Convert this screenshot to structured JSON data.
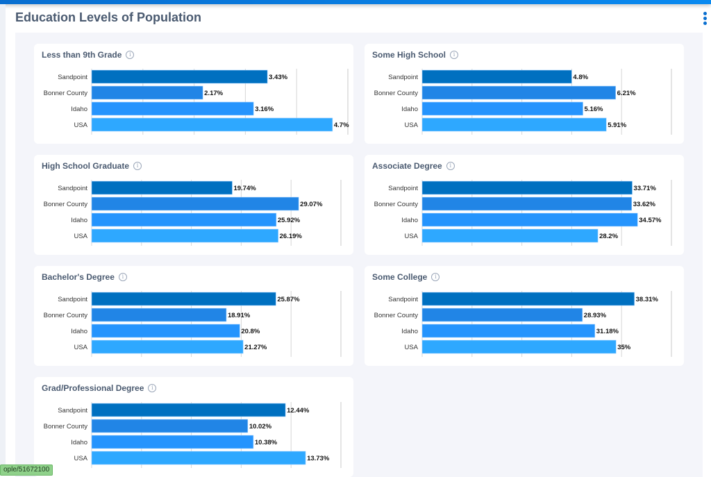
{
  "header": {
    "title": "Education Levels of Population",
    "menu_icon": "kebab-menu-icon"
  },
  "colors": {
    "Sandpoint": "#0070c0",
    "Bonner County": "#2185e6",
    "Idaho": "#2594fd",
    "USA": "#2ea8ff",
    "title": "#4a5a70",
    "accent": "#0a6fd0"
  },
  "status_tooltip": "ople/51672100",
  "chart_data": [
    {
      "type": "bar",
      "orientation": "horizontal",
      "title": "Less than 9th Grade",
      "categories": [
        "Sandpoint",
        "Bonner County",
        "Idaho",
        "USA"
      ],
      "values": [
        3.43,
        2.17,
        3.16,
        4.7
      ],
      "labels": [
        "3.43%",
        "2.17%",
        "3.16%",
        "4.7%"
      ],
      "xlim": [
        0,
        5
      ],
      "grid": true
    },
    {
      "type": "bar",
      "orientation": "horizontal",
      "title": "Some High School",
      "categories": [
        "Sandpoint",
        "Bonner County",
        "Idaho",
        "USA"
      ],
      "values": [
        4.8,
        6.21,
        5.16,
        5.91
      ],
      "labels": [
        "4.8%",
        "6.21%",
        "5.16%",
        "5.91%"
      ],
      "xlim": [
        0,
        8
      ],
      "grid": true
    },
    {
      "type": "bar",
      "orientation": "horizontal",
      "title": "High School Graduate",
      "categories": [
        "Sandpoint",
        "Bonner County",
        "Idaho",
        "USA"
      ],
      "values": [
        19.74,
        29.07,
        25.92,
        26.19
      ],
      "labels": [
        "19.74%",
        "29.07%",
        "25.92%",
        "26.19%"
      ],
      "xlim": [
        0,
        35
      ],
      "grid": true
    },
    {
      "type": "bar",
      "orientation": "horizontal",
      "title": "Associate Degree",
      "categories": [
        "Sandpoint",
        "Bonner County",
        "Idaho",
        "USA"
      ],
      "values": [
        33.71,
        33.62,
        34.57,
        28.2
      ],
      "labels": [
        "33.71%",
        "33.62%",
        "34.57%",
        "28.2%"
      ],
      "xlim": [
        0,
        40
      ],
      "grid": true
    },
    {
      "type": "bar",
      "orientation": "horizontal",
      "title": "Bachelor's Degree",
      "categories": [
        "Sandpoint",
        "Bonner County",
        "Idaho",
        "USA"
      ],
      "values": [
        25.87,
        18.91,
        20.8,
        21.27
      ],
      "labels": [
        "25.87%",
        "18.91%",
        "20.8%",
        "21.27%"
      ],
      "xlim": [
        0,
        35
      ],
      "grid": true
    },
    {
      "type": "bar",
      "orientation": "horizontal",
      "title": "Some College",
      "categories": [
        "Sandpoint",
        "Bonner County",
        "Idaho",
        "USA"
      ],
      "values": [
        38.31,
        28.93,
        31.18,
        35
      ],
      "labels": [
        "38.31%",
        "28.93%",
        "31.18%",
        "35%"
      ],
      "xlim": [
        0,
        45
      ],
      "grid": true
    },
    {
      "type": "bar",
      "orientation": "horizontal",
      "title": "Grad/Professional Degree",
      "categories": [
        "Sandpoint",
        "Bonner County",
        "Idaho",
        "USA"
      ],
      "values": [
        12.44,
        10.02,
        10.38,
        13.73
      ],
      "labels": [
        "12.44%",
        "10.02%",
        "10.38%",
        "13.73%"
      ],
      "xlim": [
        0,
        16
      ],
      "grid": true
    }
  ]
}
